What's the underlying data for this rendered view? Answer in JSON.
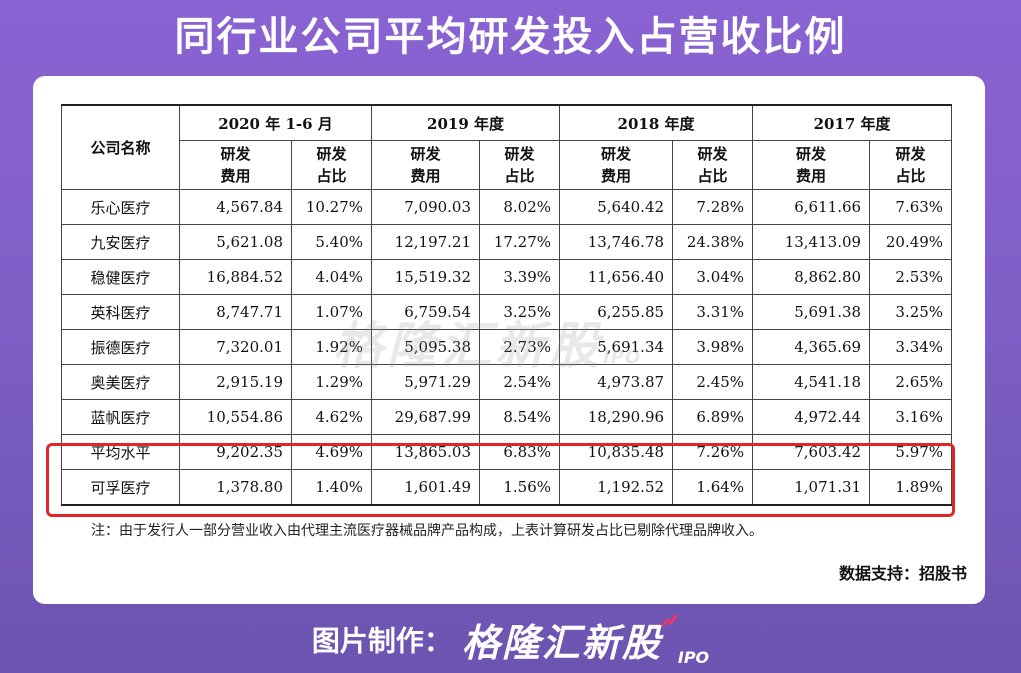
{
  "title": "同行业公司平均研发投入占营收比例",
  "table": {
    "name_header": "公司名称",
    "periods": [
      "2020 年 1-6 月",
      "2019 年度",
      "2018 年度",
      "2017 年度"
    ],
    "sub_headers": [
      "研发\n费用",
      "研发\n占比"
    ],
    "rows": [
      {
        "name": "乐心医疗",
        "cells": [
          "4,567.84",
          "10.27%",
          "7,090.03",
          "8.02%",
          "5,640.42",
          "7.28%",
          "6,611.66",
          "7.63%"
        ]
      },
      {
        "name": "九安医疗",
        "cells": [
          "5,621.08",
          "5.40%",
          "12,197.21",
          "17.27%",
          "13,746.78",
          "24.38%",
          "13,413.09",
          "20.49%"
        ]
      },
      {
        "name": "稳健医疗",
        "cells": [
          "16,884.52",
          "4.04%",
          "15,519.32",
          "3.39%",
          "11,656.40",
          "3.04%",
          "8,862.80",
          "2.53%"
        ]
      },
      {
        "name": "英科医疗",
        "cells": [
          "8,747.71",
          "1.07%",
          "6,759.54",
          "3.25%",
          "6,255.85",
          "3.31%",
          "5,691.38",
          "3.25%"
        ]
      },
      {
        "name": "振德医疗",
        "cells": [
          "7,320.01",
          "1.92%",
          "5,095.38",
          "2.73%",
          "5,691.34",
          "3.98%",
          "4,365.69",
          "3.34%"
        ]
      },
      {
        "name": "奥美医疗",
        "cells": [
          "2,915.19",
          "1.29%",
          "5,971.29",
          "2.54%",
          "4,973.87",
          "2.45%",
          "4,541.18",
          "2.65%"
        ]
      },
      {
        "name": "蓝帆医疗",
        "cells": [
          "10,554.86",
          "4.62%",
          "29,687.99",
          "8.54%",
          "18,290.96",
          "6.89%",
          "4,972.44",
          "3.16%"
        ]
      },
      {
        "name": "平均水平",
        "cells": [
          "9,202.35",
          "4.69%",
          "13,865.03",
          "6.83%",
          "10,835.48",
          "7.26%",
          "7,603.42",
          "5.97%"
        ]
      },
      {
        "name": "可孚医疗",
        "cells": [
          "1,378.80",
          "1.40%",
          "1,601.49",
          "1.56%",
          "1,192.52",
          "1.64%",
          "1,071.31",
          "1.89%"
        ]
      }
    ]
  },
  "note": "注：由于发行人一部分营业收入由代理主流医疗器械品牌产品构成，上表计算研发占比已剔除代理品牌收入。",
  "support": "数据支持：招股书",
  "watermark": {
    "brand": "格隆汇新股",
    "ipo": "IPO"
  },
  "footer": {
    "label": "图片制作：",
    "brand": "格隆汇新股",
    "ipo": "IPO"
  },
  "colors": {
    "highlight": "#e0262a",
    "background": "#7f5fc6",
    "accent_arrow": "#e8366f"
  },
  "chart_data": {
    "type": "table",
    "title": "同行业公司平均研发投入占营收比例",
    "columns": [
      "公司名称",
      "2020 年 1-6 月 研发费用",
      "2020 年 1-6 月 研发占比",
      "2019 年度 研发费用",
      "2019 年度 研发占比",
      "2018 年度 研发费用",
      "2018 年度 研发占比",
      "2017 年度 研发费用",
      "2017 年度 研发占比"
    ],
    "rows": [
      [
        "乐心医疗",
        4567.84,
        10.27,
        7090.03,
        8.02,
        5640.42,
        7.28,
        6611.66,
        7.63
      ],
      [
        "九安医疗",
        5621.08,
        5.4,
        12197.21,
        17.27,
        13746.78,
        24.38,
        13413.09,
        20.49
      ],
      [
        "稳健医疗",
        16884.52,
        4.04,
        15519.32,
        3.39,
        11656.4,
        3.04,
        8862.8,
        2.53
      ],
      [
        "英科医疗",
        8747.71,
        1.07,
        6759.54,
        3.25,
        6255.85,
        3.31,
        5691.38,
        3.25
      ],
      [
        "振德医疗",
        7320.01,
        1.92,
        5095.38,
        2.73,
        5691.34,
        3.98,
        4365.69,
        3.34
      ],
      [
        "奥美医疗",
        2915.19,
        1.29,
        5971.29,
        2.54,
        4973.87,
        2.45,
        4541.18,
        2.65
      ],
      [
        "蓝帆医疗",
        10554.86,
        4.62,
        29687.99,
        8.54,
        18290.96,
        6.89,
        4972.44,
        3.16
      ],
      [
        "平均水平",
        9202.35,
        4.69,
        13865.03,
        6.83,
        10835.48,
        7.26,
        7603.42,
        5.97
      ],
      [
        "可孚医疗",
        1378.8,
        1.4,
        1601.49,
        1.56,
        1192.52,
        1.64,
        1071.31,
        1.89
      ]
    ],
    "highlighted_rows": [
      "平均水平",
      "可孚医疗"
    ]
  }
}
